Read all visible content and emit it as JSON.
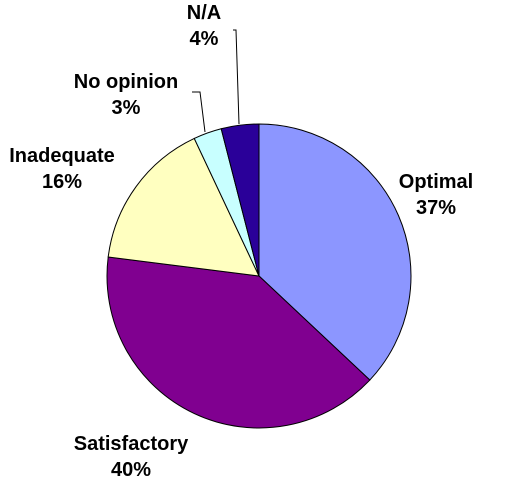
{
  "chart_data": {
    "type": "pie",
    "title": "",
    "slices": [
      {
        "label": "Optimal",
        "value": 37,
        "value_label": "37%",
        "color": "#8c96ff"
      },
      {
        "label": "Satisfactory",
        "value": 40,
        "value_label": "40%",
        "color": "#800090"
      },
      {
        "label": "Inadequate",
        "value": 16,
        "value_label": "16%",
        "color": "#ffffc0"
      },
      {
        "label": "No opinion",
        "value": 3,
        "value_label": "3%",
        "color": "#c8ffff"
      },
      {
        "label": "N/A",
        "value": 4,
        "value_label": "4%",
        "color": "#2a0099"
      }
    ],
    "start_angle_deg": 0,
    "direction": "clockwise",
    "legend": "none",
    "label_style": "outside, category name above percentage",
    "slice_outline_color": "#000000",
    "leader_line_color": "#000000"
  }
}
